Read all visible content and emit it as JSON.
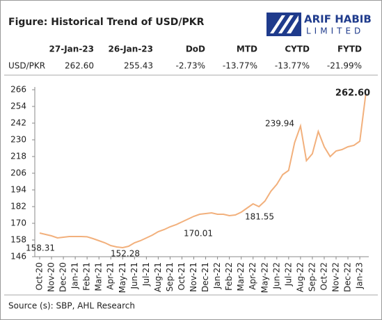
{
  "header": {
    "title": "Figure: Historical Trend of USD/PKR",
    "logo_top": "ARIF HABIB",
    "logo_bottom": "LIMITED"
  },
  "table": {
    "columns": [
      "27-Jan-23",
      "26-Jan-23",
      "DoD",
      "MTD",
      "CYTD",
      "FYTD"
    ],
    "rows": [
      {
        "label": "USD/PKR",
        "cells": [
          "262.60",
          "255.43",
          "-2.73%",
          "-13.77%",
          "-13.77%",
          "-21.99%"
        ]
      }
    ]
  },
  "chart_data": {
    "type": "line",
    "categories": [
      "Oct-20",
      null,
      "Nov-20",
      null,
      "Dec-20",
      null,
      "Jan-21",
      null,
      "Feb-21",
      null,
      "Mar-21",
      null,
      "Apr-21",
      null,
      "May-21",
      null,
      "Jun-21",
      null,
      "Jul-21",
      null,
      "Aug-21",
      null,
      "Sep-21",
      null,
      "Oct-21",
      null,
      "Nov-21",
      null,
      "Dec-21",
      null,
      "Jan-22",
      null,
      "Feb-22",
      null,
      "Mar-22",
      null,
      "Apr-22",
      null,
      "May-22",
      null,
      "Jun-22",
      null,
      "Jul-22",
      null,
      "Aug-22",
      null,
      "Sep-22",
      null,
      "Oct-22",
      null,
      "Nov-22",
      null,
      "Dec-22",
      null,
      "Jan-23",
      null
    ],
    "series": [
      {
        "name": "USD/PKR",
        "color": "#f2b07c",
        "values": [
          163,
          162,
          161,
          159.5,
          160,
          160.5,
          160.5,
          160.5,
          160.3,
          159,
          157.5,
          156,
          154,
          153,
          152.5,
          153.5,
          156,
          157.5,
          159.5,
          161.5,
          164,
          165.5,
          167.5,
          169,
          171,
          173,
          175,
          176.5,
          177,
          177.5,
          176.5,
          176.5,
          175.5,
          176,
          178,
          181,
          184,
          182,
          186,
          193,
          198,
          205,
          208,
          228,
          239.9,
          215,
          220,
          236,
          225,
          218,
          222,
          223,
          225,
          226,
          229,
          262.6
        ]
      }
    ],
    "ylim": [
      146,
      266
    ],
    "yticks": [
      146,
      158,
      170,
      182,
      194,
      206,
      218,
      230,
      242,
      254,
      266
    ],
    "annotations": [
      "158.31",
      "152.28",
      "170.01",
      "181.55",
      "239.94",
      "262.60"
    ],
    "source": "Source (s): SBP, AHL Research"
  }
}
